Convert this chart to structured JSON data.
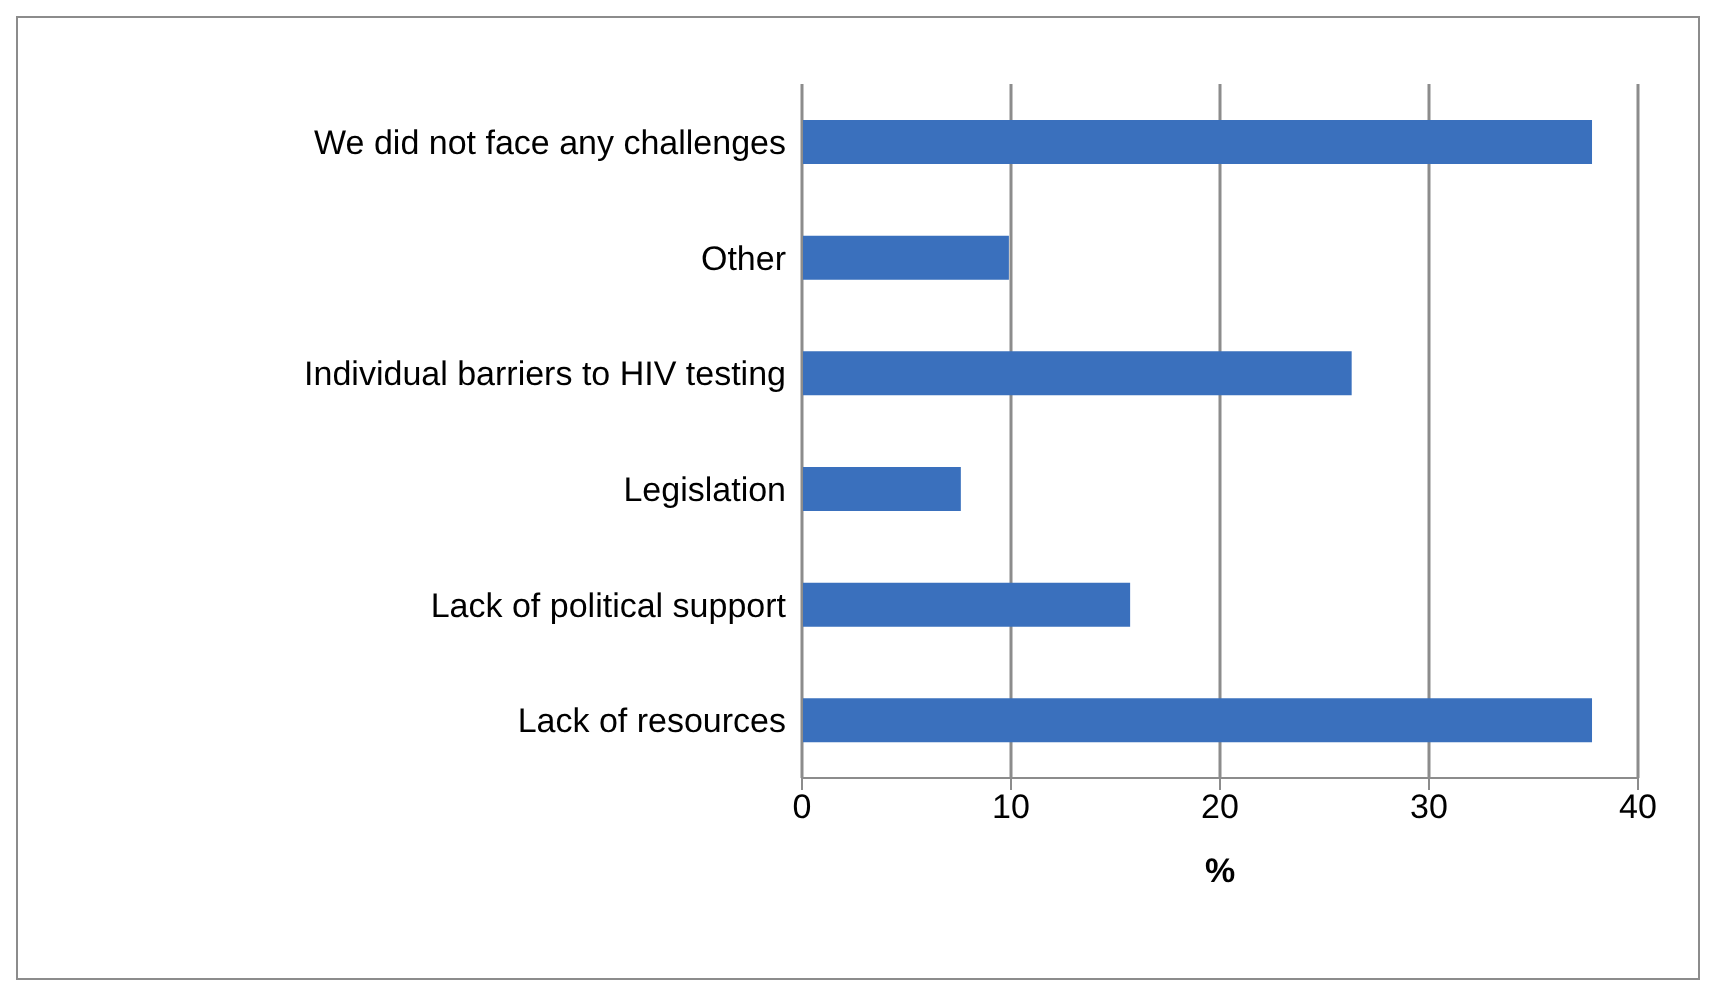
{
  "chart_data": {
    "type": "bar",
    "orientation": "horizontal",
    "categories": [
      "We did not face any challenges",
      "Other",
      "Individual barriers to HIV testing",
      "Legislation",
      "Lack of political support",
      "Lack of resources"
    ],
    "values": [
      37.8,
      9.9,
      26.3,
      7.6,
      15.7,
      37.8
    ],
    "color": "#3a70bd",
    "xlim": [
      0,
      40
    ],
    "xticks": [
      0,
      10,
      20,
      30,
      40
    ],
    "xlabel": "%",
    "grid": "x",
    "legend": false
  }
}
